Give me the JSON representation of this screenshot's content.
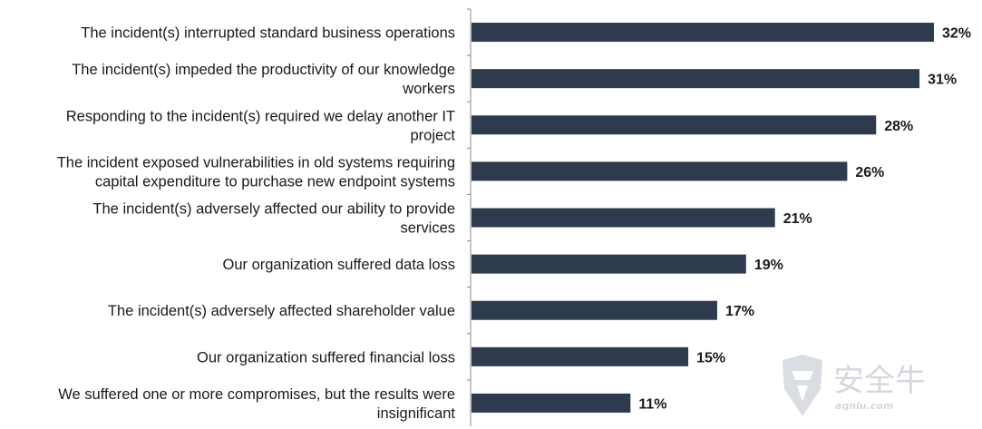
{
  "chart_data": {
    "type": "bar",
    "orientation": "horizontal",
    "categories": [
      [
        "The incident(s) interrupted standard business operations"
      ],
      [
        "The incident(s) impeded the productivity of our knowledge",
        "workers"
      ],
      [
        "Responding to the incident(s) required we delay another IT",
        "project"
      ],
      [
        "The incident exposed vulnerabilities in old systems requiring",
        "capital expenditure to purchase new endpoint systems"
      ],
      [
        "The incident(s) adversely affected our ability to provide",
        "services"
      ],
      [
        "Our organization suffered data loss"
      ],
      [
        "The incident(s) adversely affected shareholder value"
      ],
      [
        "Our organization suffered financial loss"
      ],
      [
        "We suffered one or more compromises, but the results were",
        "insignificant"
      ]
    ],
    "values": [
      32,
      31,
      28,
      26,
      21,
      19,
      17,
      15,
      11
    ],
    "value_labels": [
      "32%",
      "31%",
      "28%",
      "26%",
      "21%",
      "19%",
      "17%",
      "15%",
      "11%"
    ],
    "xlim": [
      0,
      32
    ],
    "grid": false,
    "bar_color": "#2e3b4e"
  },
  "watermark": {
    "brand_cn": "安全牛",
    "brand_en": "aqniu.com"
  }
}
